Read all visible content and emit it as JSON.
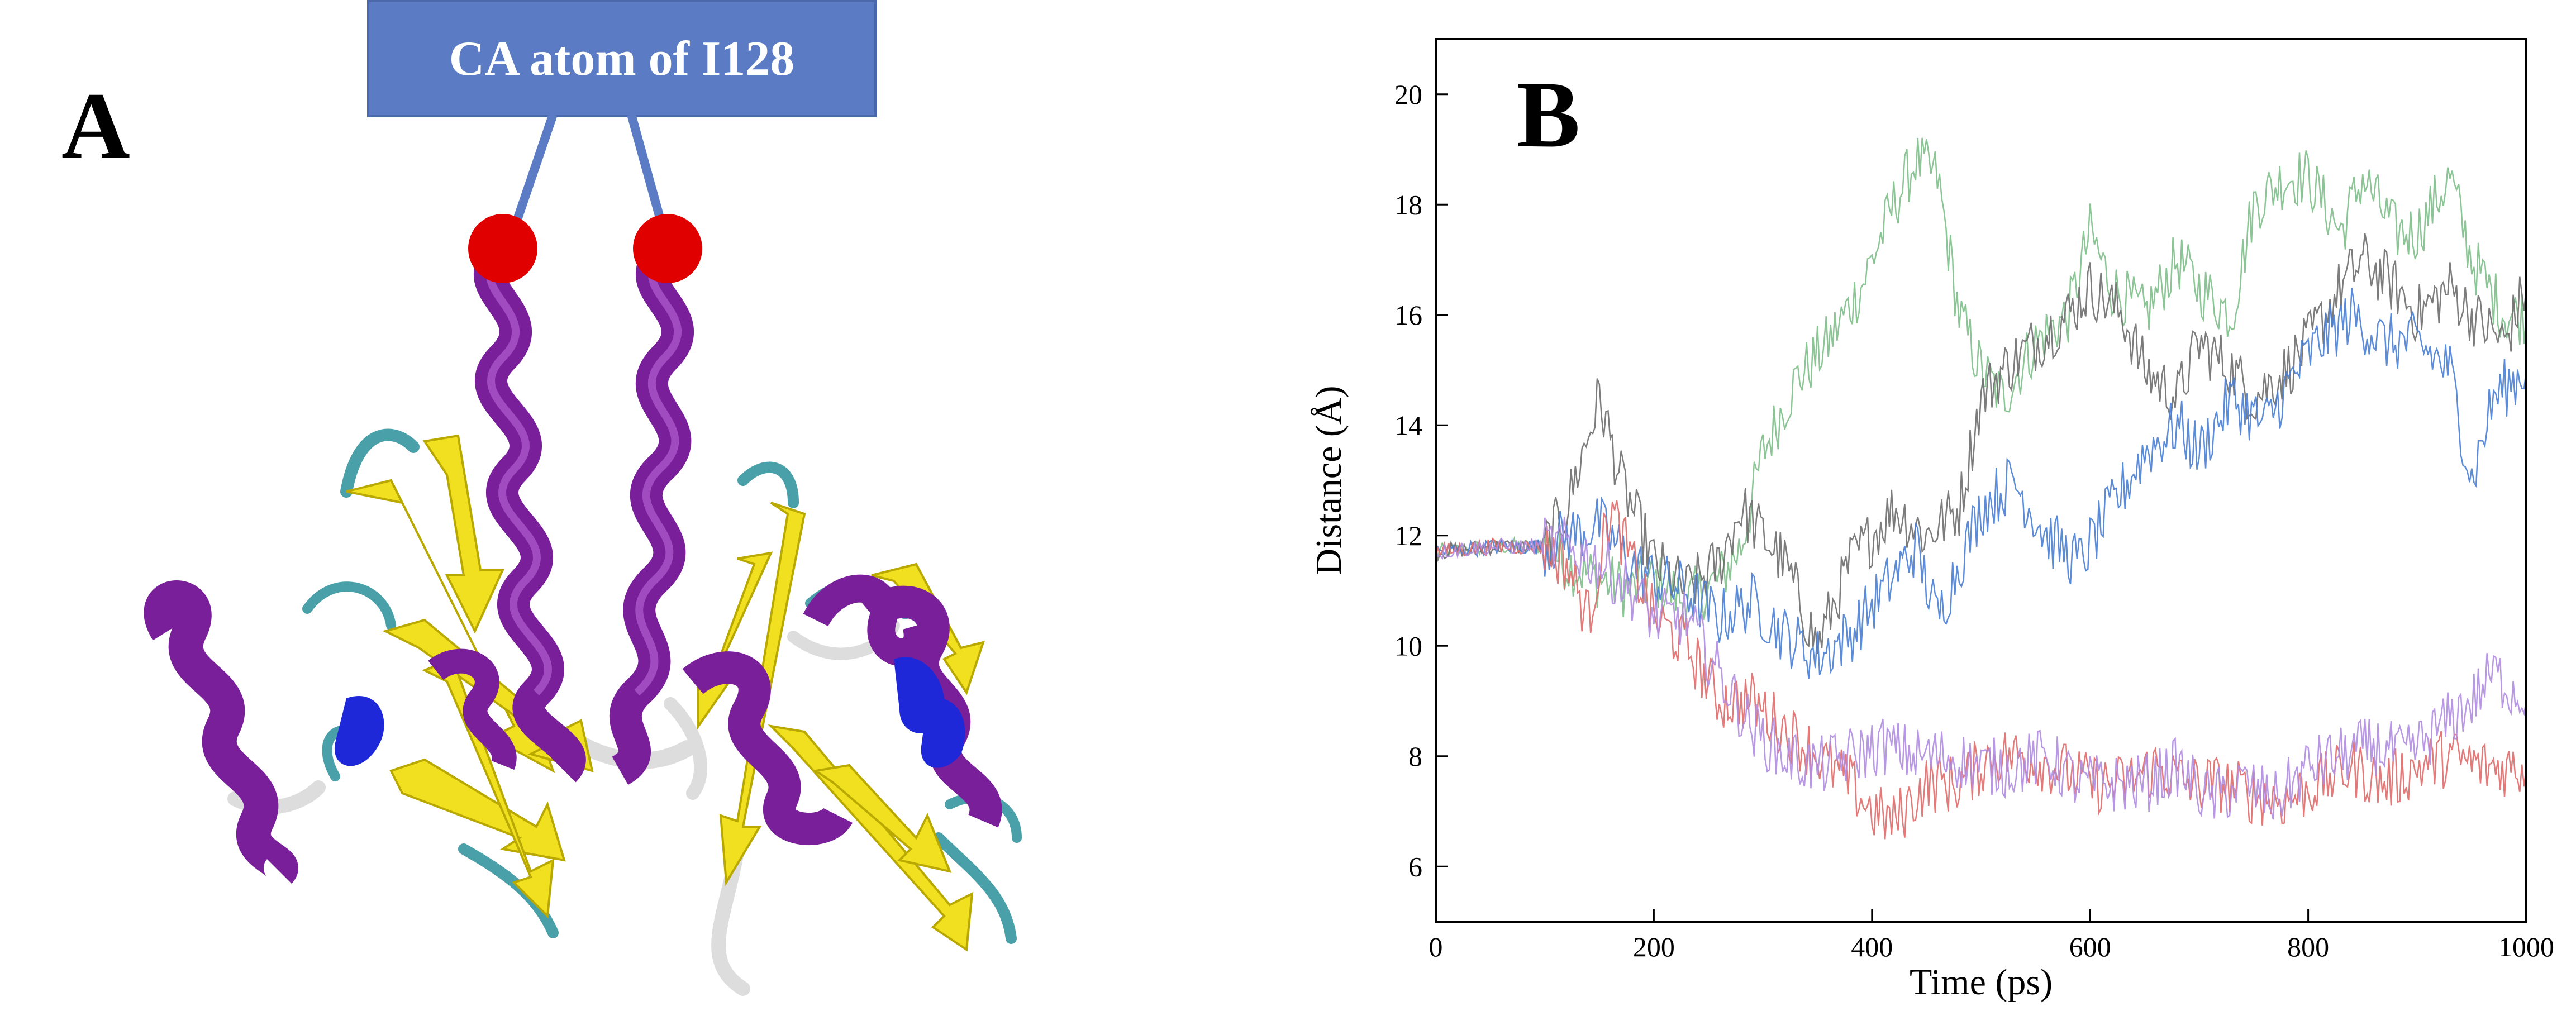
{
  "panel_a": {
    "letter": "A",
    "callout_label": "CA atom of I128",
    "colors": {
      "callout": "#5b7cc4",
      "atom_marker": "#e00000",
      "helix": "#7a1f9a",
      "strand": "#f0e020",
      "turn": "#4aa0a8",
      "coil": "#dddddd",
      "helix310": "#1e28d8"
    }
  },
  "panel_b": {
    "letter": "B",
    "chart_data": {
      "type": "line",
      "xlabel": "Time (ps)",
      "ylabel": "Distance (Å)",
      "xlim": [
        0,
        1000
      ],
      "ylim": [
        5,
        21
      ],
      "xticks": [
        0,
        200,
        400,
        600,
        800,
        1000
      ],
      "yticks": [
        6,
        8,
        10,
        12,
        14,
        16,
        18,
        20
      ],
      "grid": false,
      "legend": "none",
      "series": [
        {
          "color": "#7fbf8a",
          "x": [
            0,
            50,
            100,
            120,
            150,
            180,
            200,
            230,
            260,
            280,
            300,
            330,
            360,
            390,
            420,
            440,
            460,
            480,
            500,
            520,
            550,
            580,
            600,
            620,
            650,
            680,
            700,
            730,
            750,
            780,
            800,
            830,
            850,
            880,
            900,
            930,
            950,
            980,
            1000
          ],
          "y": [
            11.7,
            11.8,
            11.8,
            11.5,
            11.2,
            11.0,
            11.2,
            10.8,
            11.2,
            11.8,
            13.5,
            14.8,
            15.5,
            16.5,
            18.0,
            18.8,
            18.5,
            16.0,
            15.0,
            14.5,
            15.5,
            16.0,
            17.5,
            16.5,
            16.0,
            17.0,
            16.5,
            16.0,
            18.0,
            18.5,
            18.5,
            17.5,
            18.5,
            17.5,
            17.5,
            18.5,
            17.0,
            16.0,
            16.0
          ]
        },
        {
          "color": "#6e6e6e",
          "x": [
            0,
            50,
            100,
            120,
            150,
            170,
            200,
            230,
            260,
            280,
            300,
            320,
            350,
            380,
            420,
            450,
            480,
            500,
            520,
            550,
            580,
            600,
            630,
            650,
            680,
            700,
            730,
            750,
            780,
            800,
            830,
            850,
            880,
            900,
            930,
            950,
            980,
            1000
          ],
          "y": [
            11.7,
            11.8,
            11.8,
            12.5,
            14.5,
            13.0,
            11.5,
            11.0,
            11.5,
            12.5,
            12.0,
            11.5,
            10.0,
            11.5,
            12.5,
            12.0,
            12.5,
            14.5,
            15.0,
            15.5,
            16.0,
            16.5,
            16.0,
            15.0,
            14.5,
            15.5,
            15.0,
            14.5,
            15.0,
            15.5,
            16.5,
            17.0,
            16.5,
            16.0,
            16.5,
            16.0,
            15.5,
            16.5
          ]
        },
        {
          "color": "#4a7fd4",
          "x": [
            0,
            50,
            100,
            120,
            150,
            180,
            200,
            230,
            260,
            290,
            320,
            350,
            380,
            410,
            440,
            460,
            480,
            500,
            530,
            560,
            590,
            620,
            650,
            680,
            700,
            730,
            760,
            790,
            810,
            840,
            870,
            900,
            930,
            950,
            970,
            1000
          ],
          "y": [
            11.7,
            11.8,
            11.8,
            12.0,
            12.2,
            11.5,
            11.2,
            11.0,
            10.5,
            10.8,
            10.2,
            9.8,
            10.2,
            11.0,
            11.8,
            10.5,
            11.5,
            12.5,
            13.0,
            12.0,
            11.5,
            12.5,
            13.5,
            14.0,
            13.5,
            14.5,
            14.0,
            15.0,
            15.5,
            16.0,
            15.5,
            15.5,
            15.0,
            13.0,
            14.5,
            15.0
          ]
        },
        {
          "color": "#e06b6b",
          "x": [
            0,
            50,
            100,
            120,
            140,
            160,
            180,
            200,
            230,
            260,
            290,
            320,
            350,
            380,
            400,
            420,
            450,
            480,
            510,
            540,
            570,
            600,
            630,
            660,
            690,
            720,
            750,
            780,
            810,
            840,
            870,
            900,
            930,
            960,
            1000
          ],
          "y": [
            11.7,
            11.8,
            11.8,
            11.5,
            10.5,
            12.5,
            11.5,
            10.5,
            10.0,
            9.0,
            9.0,
            8.5,
            8.0,
            7.5,
            7.0,
            6.8,
            7.5,
            7.5,
            8.0,
            8.0,
            7.8,
            7.5,
            7.5,
            7.8,
            7.5,
            7.5,
            7.3,
            7.2,
            7.5,
            7.8,
            7.5,
            7.8,
            8.0,
            7.8,
            7.8
          ]
        },
        {
          "color": "#b08ce0",
          "x": [
            0,
            50,
            100,
            120,
            150,
            180,
            200,
            230,
            260,
            290,
            320,
            350,
            380,
            410,
            440,
            470,
            500,
            530,
            560,
            590,
            620,
            650,
            680,
            710,
            740,
            770,
            800,
            830,
            860,
            890,
            920,
            950,
            970,
            1000
          ],
          "y": [
            11.7,
            11.8,
            11.8,
            11.8,
            11.5,
            11.0,
            10.5,
            10.5,
            9.5,
            8.5,
            8.0,
            7.8,
            8.0,
            8.2,
            8.0,
            8.0,
            7.8,
            7.8,
            8.0,
            7.5,
            7.5,
            7.5,
            7.8,
            7.2,
            7.5,
            7.2,
            7.8,
            8.0,
            8.2,
            8.0,
            8.5,
            9.0,
            9.5,
            9.0
          ]
        }
      ]
    }
  }
}
